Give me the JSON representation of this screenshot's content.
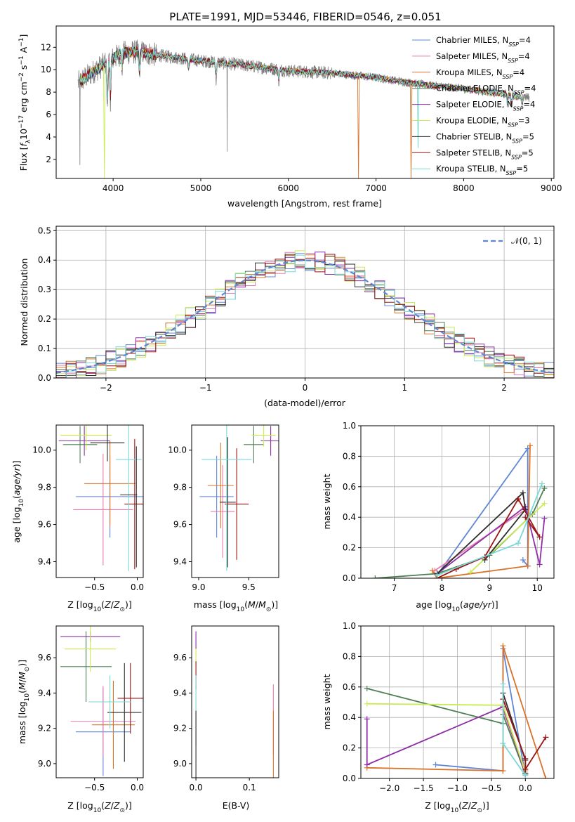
{
  "title": "PLATE=1991, MJD=53446, FIBERID=0546, z=0.051",
  "colors": {
    "cm": "#5f86d6",
    "sm": "#e87cb0",
    "km": "#d9722a",
    "ce": "#4f7f55",
    "se": "#8e2fa5",
    "ke": "#c9ec55",
    "cs": "#2d2d2d",
    "ss": "#9b1414",
    "ks": "#7ad8d8",
    "obs": "#808080"
  },
  "series": [
    {
      "key": "cm",
      "name": "Chabrier MILES, N",
      "n": "=4"
    },
    {
      "key": "sm",
      "name": "Salpeter MILES, N",
      "n": "=4"
    },
    {
      "key": "km",
      "name": "Kroupa MILES, N",
      "n": "=4"
    },
    {
      "key": "ce",
      "name": "Chabrier ELODIE, N",
      "n": "=4"
    },
    {
      "key": "se",
      "name": "Salpeter ELODIE, N",
      "n": "=4"
    },
    {
      "key": "ke",
      "name": "Kroupa ELODIE, N",
      "n": "=3"
    },
    {
      "key": "cs",
      "name": "Chabrier STELIB, N",
      "n": "=5"
    },
    {
      "key": "ss",
      "name": "Salpeter STELIB, N",
      "n": "=5"
    },
    {
      "key": "ks",
      "name": "Kroupa STELIB, N",
      "n": "=5"
    }
  ],
  "legend_subscript": "SSP",
  "chart_data": [
    {
      "id": "spectrum",
      "type": "line",
      "xlabel": "wavelength [Angstrom, rest frame]",
      "ylabel": "Flux [f_λ 10^-17 erg cm^-2 s^-1 A^-1]",
      "xlim": [
        3350,
        9030
      ],
      "ylim": [
        0.3,
        13.9
      ],
      "xticks": [
        4000,
        5000,
        6000,
        7000,
        8000,
        9000
      ],
      "yticks": [
        2,
        4,
        6,
        8,
        10,
        12
      ],
      "legend": "top-right",
      "continuum_anchors": [
        [
          3600,
          8.8
        ],
        [
          3700,
          9.4
        ],
        [
          3900,
          10.5
        ],
        [
          4100,
          11.5
        ],
        [
          4300,
          11.6
        ],
        [
          4500,
          11.3
        ],
        [
          5000,
          10.8
        ],
        [
          5500,
          10.4
        ],
        [
          6000,
          9.9
        ],
        [
          6500,
          9.7
        ],
        [
          7000,
          9.3
        ],
        [
          7500,
          8.7
        ],
        [
          8000,
          8.3
        ],
        [
          8500,
          7.8
        ],
        [
          8750,
          7.5
        ]
      ],
      "absorption_features": [
        {
          "x": 3934,
          "depth": 4.0
        },
        {
          "x": 3969,
          "depth": 3.5
        },
        {
          "x": 4102,
          "depth": 1.5
        },
        {
          "x": 4300,
          "depth": 2.0
        },
        {
          "x": 4861,
          "depth": 1.0
        },
        {
          "x": 5175,
          "depth": 1.5
        },
        {
          "x": 5890,
          "depth": 1.0
        },
        {
          "x": 8500,
          "depth": 0.8
        },
        {
          "x": 8545,
          "depth": 1.0
        },
        {
          "x": 8665,
          "depth": 0.8
        }
      ],
      "model_drops": [
        {
          "key": "ke",
          "x": 3900,
          "y": 0.3
        },
        {
          "key": "km",
          "x": 6800,
          "y": 0.3
        },
        {
          "key": "km",
          "x": 7400,
          "y": 0.3
        },
        {
          "key": "ks",
          "x": 7480,
          "y": 3.0
        }
      ],
      "observed_range": [
        3600,
        8750
      ],
      "observed_spikes": [
        {
          "x": 5300,
          "y": 2.7
        },
        {
          "x": 3620,
          "y": 1.5
        }
      ]
    },
    {
      "id": "residuals",
      "type": "step",
      "xlabel": "(data-model)/error",
      "ylabel": "Normed distribution",
      "xlim": [
        -2.5,
        2.5
      ],
      "ylim": [
        0,
        0.515
      ],
      "xticks": [
        -2,
        -1,
        0,
        1,
        2
      ],
      "yticks": [
        0.0,
        0.1,
        0.2,
        0.3,
        0.4,
        0.5
      ],
      "grid": true,
      "reference": {
        "label": "𝒩(0, 1)",
        "mean": 0,
        "sigma": 1,
        "style": "dashed"
      },
      "bin_width": 0.1,
      "legend": "top-right"
    },
    {
      "id": "age_vs_z",
      "type": "errorbar",
      "xlabel": "Z [log10(Z/Z⊙)]",
      "ylabel": "age  [log10(age/yr)]",
      "xlim": [
        -0.95,
        0.07
      ],
      "ylim": [
        9.315,
        10.135
      ],
      "xticks": [
        -0.5,
        0.0
      ],
      "yticks": [
        9.4,
        9.6,
        9.8,
        10.0
      ],
      "points": [
        {
          "key": "cm",
          "x": -0.32,
          "xerr": 0.4,
          "y": 9.75,
          "yerr": 0.22
        },
        {
          "key": "sm",
          "x": -0.4,
          "xerr": 0.35,
          "y": 9.68,
          "yerr": 0.3
        },
        {
          "key": "km",
          "x": -0.32,
          "xerr": 0.3,
          "y": 9.82,
          "yerr": 0.23
        },
        {
          "key": "ce",
          "x": -0.67,
          "xerr": 0.2,
          "y": 10.03,
          "yerr": 0.1
        },
        {
          "key": "se",
          "x": -0.62,
          "xerr": 0.3,
          "y": 10.05,
          "yerr": 0.08
        },
        {
          "key": "ke",
          "x": -0.6,
          "xerr": 0.3,
          "y": 10.08,
          "yerr": 0.08
        },
        {
          "key": "cs",
          "x": -0.35,
          "xerr": 0.2,
          "y": 10.04,
          "yerr": 0.1
        },
        {
          "key": "ss",
          "x": -0.03,
          "xerr": 0.12,
          "y": 9.71,
          "yerr": 0.35
        },
        {
          "key": "ks",
          "x": -0.1,
          "xerr": 0.15,
          "y": 9.95,
          "yerr": 0.6
        }
      ],
      "extra_vertical": [
        {
          "key": "cs",
          "x": -0.01,
          "y0": 9.37,
          "y1": 10.02
        },
        {
          "key": "cs",
          "x": -0.1,
          "xerr": 0.1,
          "y": 9.76
        }
      ]
    },
    {
      "id": "age_vs_mass",
      "type": "errorbar",
      "xlabel": "mass [log10(M/M⊙)]",
      "ylabel": "",
      "xlim": [
        8.93,
        9.8
      ],
      "ylim": [
        9.315,
        10.135
      ],
      "xticks": [
        9.0,
        9.5
      ],
      "yticks": [
        9.4,
        9.6,
        9.8,
        10.0
      ],
      "points": [
        {
          "key": "cm",
          "x": 9.18,
          "xerr": 0.17,
          "y": 9.75,
          "yerr": 0.22
        },
        {
          "key": "sm",
          "x": 9.24,
          "xerr": 0.12,
          "y": 9.67,
          "yerr": 0.25
        },
        {
          "key": "km",
          "x": 9.22,
          "xerr": 0.13,
          "y": 9.81,
          "yerr": 0.23
        },
        {
          "key": "ce",
          "x": 9.55,
          "xerr": 0.1,
          "y": 10.03,
          "yerr": 0.1
        },
        {
          "key": "se",
          "x": 9.72,
          "xerr": 0.1,
          "y": 10.05,
          "yerr": 0.08
        },
        {
          "key": "ke",
          "x": 9.65,
          "xerr": 0.12,
          "y": 10.08,
          "yerr": 0.06
        },
        {
          "key": "cs",
          "x": 9.29,
          "xerr": 0.08,
          "y": 9.72,
          "yerr": 0.35
        },
        {
          "key": "ss",
          "x": 9.38,
          "xerr": 0.12,
          "y": 9.71,
          "yerr": 0.3
        },
        {
          "key": "ks",
          "x": 9.28,
          "xerr": 0.25,
          "y": 9.95,
          "yerr": 0.6
        }
      ]
    },
    {
      "id": "weight_vs_age",
      "type": "line",
      "xlabel": "age  [log10(age/yr)]",
      "ylabel": "mass weight",
      "xlim": [
        6.3,
        10.35
      ],
      "ylim": [
        0,
        1.0
      ],
      "xticks": [
        7,
        8,
        9,
        10
      ],
      "yticks": [
        0.0,
        0.2,
        0.4,
        0.6,
        0.8,
        1.0
      ],
      "grid": true,
      "lines": [
        {
          "key": "cm",
          "points": [
            [
              7.9,
              0.02
            ],
            [
              9.8,
              0.85
            ],
            [
              9.8,
              0.08
            ],
            [
              9.7,
              0.12
            ]
          ]
        },
        {
          "key": "sm",
          "points": [
            [
              7.85,
              0.05
            ],
            [
              9.75,
              0.45
            ]
          ]
        },
        {
          "key": "km",
          "points": [
            [
              7.8,
              0.05
            ],
            [
              7.9,
              0.0
            ],
            [
              9.8,
              0.08
            ],
            [
              9.85,
              0.87
            ]
          ]
        },
        {
          "key": "ce",
          "points": [
            [
              6.6,
              0.0
            ],
            [
              7.9,
              0.03
            ],
            [
              9.0,
              0.15
            ],
            [
              9.9,
              0.42
            ],
            [
              10.15,
              0.59
            ]
          ]
        },
        {
          "key": "se",
          "points": [
            [
              7.9,
              0.03
            ],
            [
              9.75,
              0.47
            ],
            [
              10.05,
              0.09
            ],
            [
              10.15,
              0.39
            ]
          ]
        },
        {
          "key": "ke",
          "points": [
            [
              8.6,
              0.04
            ],
            [
              10.15,
              0.49
            ]
          ]
        },
        {
          "key": "cs",
          "points": [
            [
              7.9,
              0.03
            ],
            [
              9.7,
              0.56
            ],
            [
              9.75,
              0.45
            ],
            [
              8.9,
              0.12
            ]
          ]
        },
        {
          "key": "ss",
          "points": [
            [
              7.9,
              0.0
            ],
            [
              8.3,
              0.06
            ],
            [
              8.9,
              0.14
            ],
            [
              9.6,
              0.52
            ],
            [
              10.05,
              0.27
            ],
            [
              9.75,
              0.4
            ]
          ]
        },
        {
          "key": "ks",
          "points": [
            [
              7.9,
              0.02
            ],
            [
              9.6,
              0.23
            ],
            [
              10.1,
              0.62
            ]
          ]
        }
      ]
    },
    {
      "id": "mass_vs_z",
      "type": "errorbar",
      "xlabel": "Z [log10(Z/Z⊙)]",
      "ylabel": "mass [log10(M/M⊙)]",
      "xlim": [
        -0.95,
        0.07
      ],
      "ylim": [
        8.92,
        9.78
      ],
      "xticks": [
        -0.5,
        0.0
      ],
      "yticks": [
        9.0,
        9.2,
        9.4,
        9.6
      ],
      "points": [
        {
          "key": "cm",
          "x": -0.4,
          "xerr": 0.32,
          "y": 9.18,
          "yerr": 0.25
        },
        {
          "key": "sm",
          "x": -0.4,
          "xerr": 0.38,
          "y": 9.24,
          "yerr": 0.2
        },
        {
          "key": "km",
          "x": -0.28,
          "xerr": 0.25,
          "y": 9.22,
          "yerr": 0.25
        },
        {
          "key": "ce",
          "x": -0.6,
          "xerr": 0.3,
          "y": 9.55,
          "yerr": 0.2
        },
        {
          "key": "se",
          "x": -0.55,
          "xerr": 0.35,
          "y": 9.72,
          "yerr": 0.03
        },
        {
          "key": "ke",
          "x": -0.55,
          "xerr": 0.3,
          "y": 9.65,
          "yerr": 0.13
        },
        {
          "key": "cs",
          "x": -0.15,
          "xerr": 0.2,
          "y": 9.29,
          "yerr": 0.28
        },
        {
          "key": "ss",
          "x": -0.08,
          "xerr": 0.15,
          "y": 9.37,
          "yerr": 0.2
        },
        {
          "key": "ks",
          "x": -0.32,
          "xerr": 0.25,
          "y": 9.35,
          "yerr": 0.15
        }
      ]
    },
    {
      "id": "mass_vs_ebv",
      "type": "errorbar",
      "xlabel": "E(B-V)",
      "ylabel": "",
      "xlim": [
        -0.008,
        0.155
      ],
      "ylim": [
        8.92,
        9.78
      ],
      "xticks": [
        0.0,
        0.1
      ],
      "yticks": [
        9.0,
        9.2,
        9.4,
        9.6
      ],
      "points": [
        {
          "key": "se",
          "x": 0.0,
          "y": 9.7,
          "yerr": 0.05
        },
        {
          "key": "ke",
          "x": 0.0,
          "y": 9.6,
          "yerr": 0.05
        },
        {
          "key": "ss",
          "x": 0.0,
          "y": 9.5,
          "yerr": 0.08
        },
        {
          "key": "ks",
          "x": 0.0,
          "y": 9.3,
          "yerr": 0.2
        },
        {
          "key": "cs",
          "x": 0.0,
          "y": 9.1,
          "yerr": 0.2
        },
        {
          "key": "sm",
          "x": 0.145,
          "y": 9.25,
          "yerr": 0.2
        },
        {
          "key": "km",
          "x": 0.145,
          "y": 9.1,
          "yerr": 0.2
        }
      ]
    },
    {
      "id": "weight_vs_z",
      "type": "line",
      "xlabel": "Z [log10(Z/Z⊙)]",
      "ylabel": "mass weight",
      "xlim": [
        -2.42,
        0.42
      ],
      "ylim": [
        0,
        1.0
      ],
      "xticks": [
        -2.0,
        -1.5,
        -1.0,
        -0.5,
        0.0
      ],
      "yticks": [
        0.0,
        0.2,
        0.4,
        0.6,
        0.8,
        1.0
      ],
      "grid": true,
      "lines": [
        {
          "key": "cm",
          "points": [
            [
              -1.32,
              0.09
            ],
            [
              -0.33,
              0.05
            ],
            [
              -0.33,
              0.85
            ],
            [
              0.0,
              0.02
            ]
          ]
        },
        {
          "key": "sm",
          "points": [
            [
              -0.33,
              0.45
            ],
            [
              0.0,
              0.05
            ]
          ]
        },
        {
          "key": "km",
          "points": [
            [
              -2.33,
              0.07
            ],
            [
              -0.33,
              0.05
            ],
            [
              -0.33,
              0.87
            ],
            [
              0.3,
              0.0
            ]
          ]
        },
        {
          "key": "ce",
          "points": [
            [
              -2.33,
              0.59
            ],
            [
              -0.33,
              0.36
            ],
            [
              -0.33,
              0.42
            ],
            [
              0.0,
              0.03
            ]
          ]
        },
        {
          "key": "se",
          "points": [
            [
              -2.33,
              0.39
            ],
            [
              -2.33,
              0.09
            ],
            [
              -0.33,
              0.47
            ],
            [
              0.0,
              0.03
            ]
          ]
        },
        {
          "key": "ke",
          "points": [
            [
              -2.33,
              0.49
            ],
            [
              -0.33,
              0.48
            ],
            [
              0.0,
              0.04
            ]
          ]
        },
        {
          "key": "cs",
          "points": [
            [
              -0.33,
              0.56
            ],
            [
              0.0,
              0.12
            ],
            [
              0.0,
              0.03
            ]
          ]
        },
        {
          "key": "ss",
          "points": [
            [
              -0.33,
              0.52
            ],
            [
              0.0,
              0.13
            ],
            [
              0.0,
              0.06
            ],
            [
              0.3,
              0.27
            ]
          ]
        },
        {
          "key": "ks",
          "points": [
            [
              -0.33,
              0.62
            ],
            [
              -0.33,
              0.23
            ],
            [
              0.0,
              0.02
            ]
          ]
        }
      ]
    }
  ]
}
